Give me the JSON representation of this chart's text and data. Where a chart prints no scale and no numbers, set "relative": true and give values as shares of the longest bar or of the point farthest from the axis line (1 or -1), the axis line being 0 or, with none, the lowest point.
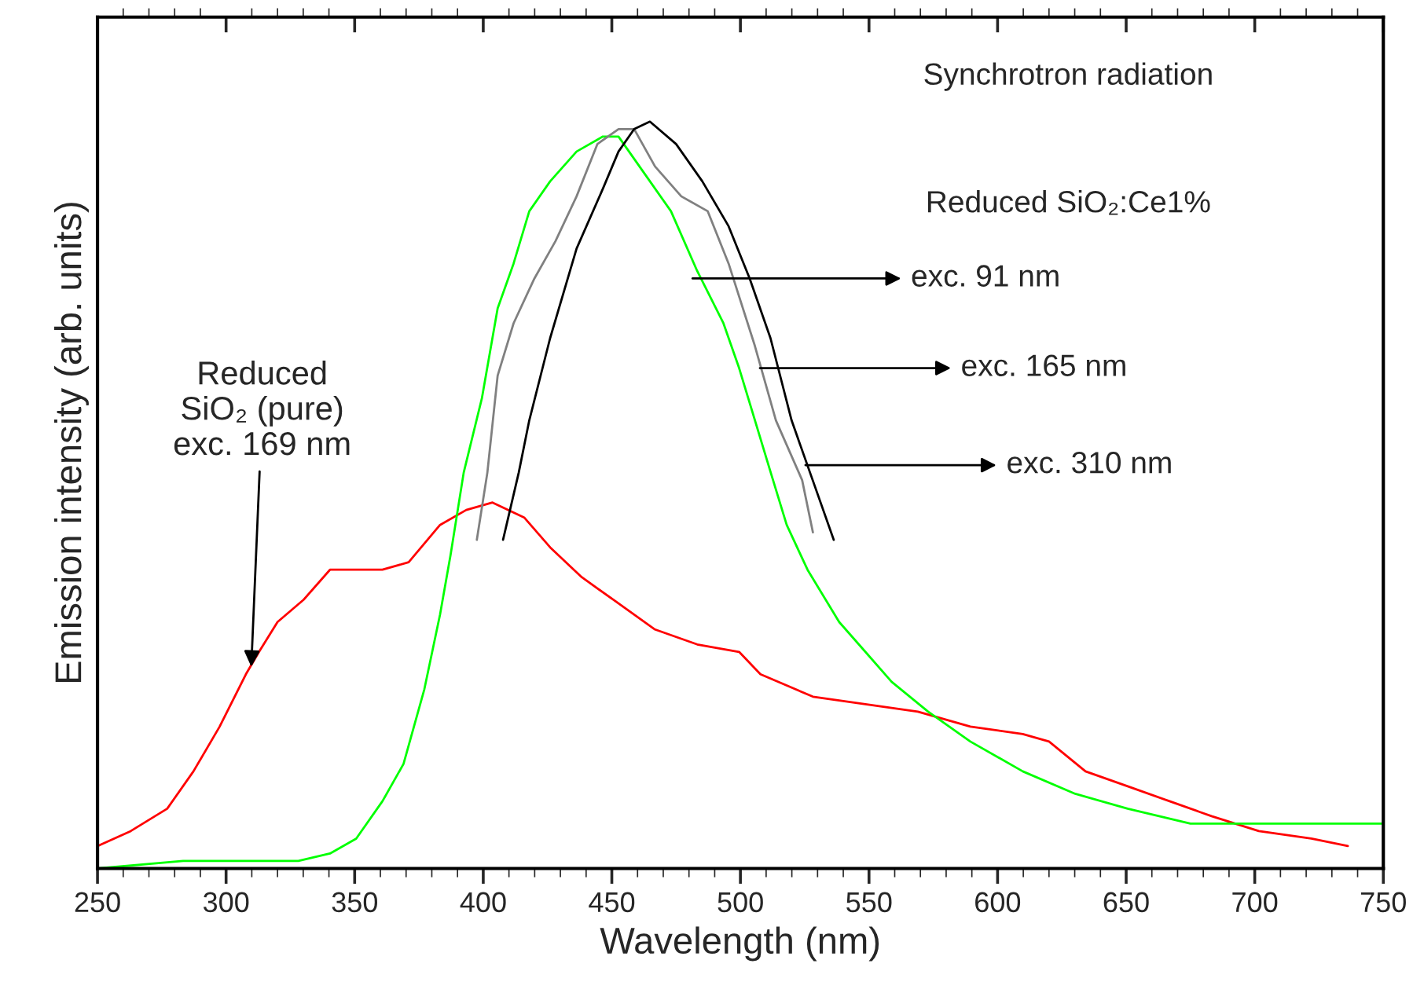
{
  "chart_data": {
    "type": "line",
    "xlabel": "Wavelength (nm)",
    "ylabel": "Emission intensity (arb. units)",
    "relative": true,
    "xlim": [
      250,
      750
    ],
    "xticks": [
      250,
      300,
      350,
      400,
      450,
      500,
      550,
      600,
      650,
      700,
      750
    ],
    "grid": false,
    "legend": false,
    "series": [
      {
        "color": "#ff0000",
        "x": [
          250,
          262.9,
          277.1,
          287.3,
          297.5,
          307.7,
          312.8,
          320,
          330.2,
          340.4,
          348.5,
          360.8,
          371,
          383.2,
          393.4,
          403.6,
          415.9,
          426,
          438.3,
          450.5,
          466.8,
          483.2,
          499.5,
          507.8,
          528.2,
          548.6,
          569,
          589.4,
          609.8,
          620,
          634.2,
          650.6,
          666.9,
          683.2,
          701.6,
          722,
          736.2
        ],
        "values": [
          0.03,
          0.05,
          0.08,
          0.13,
          0.19,
          0.26,
          0.29,
          0.33,
          0.36,
          0.4,
          0.4,
          0.4,
          0.41,
          0.46,
          0.48,
          0.49,
          0.47,
          0.43,
          0.39,
          0.36,
          0.32,
          0.3,
          0.29,
          0.26,
          0.23,
          0.22,
          0.21,
          0.19,
          0.18,
          0.17,
          0.13,
          0.11,
          0.09,
          0.07,
          0.05,
          0.04,
          0.03
        ]
      },
      {
        "color": "#00ff00",
        "x": [
          250,
          283.3,
          309.8,
          328.1,
          340.4,
          350.6,
          360.8,
          369,
          377.1,
          383.2,
          387.3,
          392.4,
          399.5,
          405.6,
          411.8,
          417.9,
          426,
          436.3,
          446.5,
          452.6,
          462.8,
          473,
          483.2,
          493.4,
          499.5,
          511.8,
          518,
          526.1,
          538.4,
          548.6,
          558.8,
          573,
          589.4,
          609.8,
          630.2,
          650.6,
          675,
          701.6,
          722,
          749.5
        ],
        "values": [
          0.0,
          0.01,
          0.01,
          0.01,
          0.02,
          0.04,
          0.09,
          0.14,
          0.24,
          0.34,
          0.42,
          0.53,
          0.63,
          0.75,
          0.81,
          0.88,
          0.92,
          0.96,
          0.98,
          0.98,
          0.93,
          0.88,
          0.8,
          0.73,
          0.67,
          0.53,
          0.46,
          0.4,
          0.33,
          0.29,
          0.25,
          0.21,
          0.17,
          0.13,
          0.1,
          0.08,
          0.06,
          0.06,
          0.06,
          0.06
        ]
      },
      {
        "color": "#808080",
        "x": [
          397.5,
          401.6,
          405.6,
          411.8,
          419.9,
          428.1,
          436.3,
          444.4,
          452.6,
          458.7,
          466.8,
          477,
          487.3,
          495.4,
          505.6,
          513.8,
          524,
          528.2
        ],
        "values": [
          0.44,
          0.53,
          0.66,
          0.73,
          0.79,
          0.84,
          0.9,
          0.97,
          0.99,
          0.99,
          0.94,
          0.9,
          0.88,
          0.81,
          0.7,
          0.6,
          0.52,
          0.45
        ]
      },
      {
        "color": "#000000",
        "x": [
          407.7,
          413.8,
          417.9,
          426,
          436.3,
          446.5,
          452.6,
          458.7,
          464.8,
          475,
          485.2,
          495.4,
          503.6,
          511.7,
          519.9,
          528.1,
          536.3
        ],
        "values": [
          0.44,
          0.53,
          0.6,
          0.71,
          0.83,
          0.91,
          0.96,
          0.99,
          1.0,
          0.97,
          0.92,
          0.86,
          0.79,
          0.71,
          0.6,
          0.52,
          0.44
        ]
      }
    ],
    "annotations": [
      "Synchrotron radiation",
      "Reduced SiO₂:Ce1%",
      {
        "text": "exc. 91 nm",
        "x": 481.4,
        "y": 0.79
      },
      {
        "text": "exc. 165 nm",
        "x": 507.6,
        "y": 0.67
      },
      {
        "text": "exc. 310 nm",
        "x": 525.3,
        "y": 0.54
      },
      {
        "text": "Reduced\nSiO₂ (pure)\nexc. 169 nm",
        "x": 309.8,
        "y": 0.27
      }
    ]
  }
}
